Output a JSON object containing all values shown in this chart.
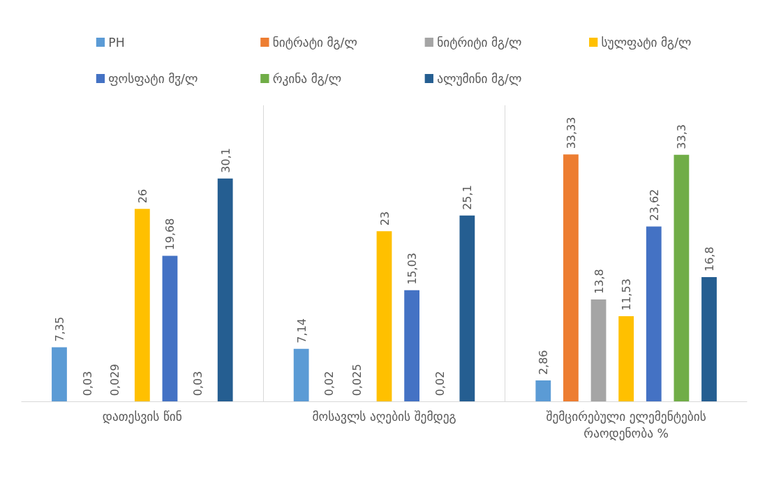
{
  "chart_data": {
    "type": "bar",
    "categories": [
      "დათესვის წინ",
      "მოსავლს აღების შემდეგ",
      "შემცირებული ელემენტების რაოდენობა %"
    ],
    "series": [
      {
        "name": "PH",
        "color": "#5b9bd5",
        "values": [
          7.35,
          7.14,
          2.86
        ],
        "value_labels": [
          "7,35",
          "7,14",
          "2,86"
        ]
      },
      {
        "name": "ნიტრატი მგ/ლ",
        "color": "#ed7d31",
        "values": [
          0.03,
          0.02,
          33.33
        ],
        "value_labels": [
          "0,03",
          "0,02",
          "33,33"
        ]
      },
      {
        "name": "ნიტრიტი მგ/ლ",
        "color": "#a5a5a5",
        "values": [
          0.029,
          0.025,
          13.8
        ],
        "value_labels": [
          "0,029",
          "0,025",
          "13,8"
        ]
      },
      {
        "name": "სულფატი მგ/ლ",
        "color": "#ffc000",
        "values": [
          26,
          23,
          11.53
        ],
        "value_labels": [
          "26",
          "23",
          "11,53"
        ]
      },
      {
        "name": "ფოსფატი მჳ/ლ",
        "color": "#4472c4",
        "values": [
          19.68,
          15.03,
          23.62
        ],
        "value_labels": [
          "19,68",
          "15,03",
          "23,62"
        ]
      },
      {
        "name": "რკინა მგ/ლ",
        "color": "#70ad47",
        "values": [
          0.03,
          0.02,
          33.3
        ],
        "value_labels": [
          "0,03",
          "0,02",
          "33,3"
        ]
      },
      {
        "name": "ალუმინი მგ/ლ",
        "color": "#255e91",
        "values": [
          30.1,
          25.1,
          16.8
        ],
        "value_labels": [
          "30,1",
          "25,1",
          "16,8"
        ]
      }
    ],
    "ylim": [
      0,
      40
    ],
    "grid": "x",
    "legend": "top",
    "tick_labels": "x"
  }
}
